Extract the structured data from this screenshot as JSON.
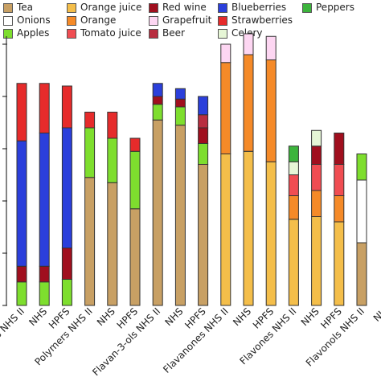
{
  "chart_data": {
    "type": "bar",
    "stacked": true,
    "title": "",
    "xlabel": "",
    "ylabel": "",
    "ylim": [
      0,
      50
    ],
    "y_ticks": [
      "0",
      "10",
      "20",
      "30",
      "40",
      "50"
    ],
    "grid": false,
    "legend_position": "top",
    "legend": [
      {
        "name": "Tea",
        "color": "#c8a064"
      },
      {
        "name": "Orange juice",
        "color": "#f4be4a"
      },
      {
        "name": "Red wine",
        "color": "#a00f1e"
      },
      {
        "name": "Blueberries",
        "color": "#2b3fdb"
      },
      {
        "name": "Peppers",
        "color": "#3cb43c"
      },
      {
        "name": "Onions",
        "color": "#ffffff"
      },
      {
        "name": "Orange",
        "color": "#f58a28"
      },
      {
        "name": "Grapefruit",
        "color": "#fdd6f2"
      },
      {
        "name": "Strawberries",
        "color": "#e62b2b"
      },
      {
        "name": "Apples",
        "color": "#7ede2e"
      },
      {
        "name": "Tomato juice",
        "color": "#f04d52"
      },
      {
        "name": "Beer",
        "color": "#b82e40"
      },
      {
        "name": "Celery",
        "color": "#e6f6d6"
      }
    ],
    "categories": [
      "Flavonoids NHS II",
      "NHS",
      "HPFS",
      "Polymers NHS II",
      "NHS",
      "HPFS",
      "Flavan-3-ols NHS II",
      "NHS",
      "HPFS",
      "Flavanones NHS II",
      "NHS",
      "HPFS",
      "Flavones NHS II",
      "NHS",
      "HPFS",
      "Flavonols NHS II",
      "NHS"
    ],
    "x_tick_labels": [
      "Flavonoids NHS II",
      "NHS",
      "HPFS",
      "Polymers NHS II",
      "NHS",
      "HPFS",
      "Flavan-3-ols NHS II",
      "NHS",
      "HPFS",
      "Flavanones NHS II",
      "NHS",
      "HPFS",
      "Flavones NHS II",
      "NHS",
      "HPFS",
      "Flavonols NHS II",
      "NH"
    ],
    "bars": [
      {
        "segments": [
          {
            "name": "Apples",
            "value": 4.5
          },
          {
            "name": "Red wine",
            "value": 3
          },
          {
            "name": "Blueberries",
            "value": 24
          },
          {
            "name": "Strawberries",
            "value": 11
          }
        ]
      },
      {
        "segments": [
          {
            "name": "Apples",
            "value": 4.5
          },
          {
            "name": "Red wine",
            "value": 3
          },
          {
            "name": "Blueberries",
            "value": 25.5
          },
          {
            "name": "Strawberries",
            "value": 9.5
          }
        ]
      },
      {
        "segments": [
          {
            "name": "Apples",
            "value": 5
          },
          {
            "name": "Red wine",
            "value": 6
          },
          {
            "name": "Blueberries",
            "value": 23
          },
          {
            "name": "Strawberries",
            "value": 8
          }
        ]
      },
      {
        "segments": [
          {
            "name": "Tea",
            "value": 24.5
          },
          {
            "name": "Apples",
            "value": 9.5
          },
          {
            "name": "Strawberries",
            "value": 3
          }
        ]
      },
      {
        "segments": [
          {
            "name": "Tea",
            "value": 23.5
          },
          {
            "name": "Apples",
            "value": 8.5
          },
          {
            "name": "Strawberries",
            "value": 5
          }
        ]
      },
      {
        "segments": [
          {
            "name": "Tea",
            "value": 18.5
          },
          {
            "name": "Apples",
            "value": 11
          },
          {
            "name": "Strawberries",
            "value": 2.5
          }
        ]
      },
      {
        "segments": [
          {
            "name": "Tea",
            "value": 35.5
          },
          {
            "name": "Apples",
            "value": 3
          },
          {
            "name": "Red wine",
            "value": 1.5
          },
          {
            "name": "Blueberries",
            "value": 2.5
          }
        ]
      },
      {
        "segments": [
          {
            "name": "Tea",
            "value": 34.5
          },
          {
            "name": "Apples",
            "value": 3.5
          },
          {
            "name": "Red wine",
            "value": 1.5
          },
          {
            "name": "Blueberries",
            "value": 2
          }
        ]
      },
      {
        "segments": [
          {
            "name": "Tea",
            "value": 27
          },
          {
            "name": "Apples",
            "value": 4
          },
          {
            "name": "Red wine",
            "value": 3
          },
          {
            "name": "Beer",
            "value": 2.5
          },
          {
            "name": "Blueberries",
            "value": 3.5
          }
        ]
      },
      {
        "segments": [
          {
            "name": "Orange juice",
            "value": 29
          },
          {
            "name": "Orange",
            "value": 17.5
          },
          {
            "name": "Grapefruit",
            "value": 3.5
          }
        ]
      },
      {
        "segments": [
          {
            "name": "Orange juice",
            "value": 29.5
          },
          {
            "name": "Orange",
            "value": 18.5
          },
          {
            "name": "Grapefruit",
            "value": 4
          }
        ]
      },
      {
        "segments": [
          {
            "name": "Orange juice",
            "value": 27.5
          },
          {
            "name": "Orange",
            "value": 19.5
          },
          {
            "name": "Grapefruit",
            "value": 4.5
          }
        ]
      },
      {
        "segments": [
          {
            "name": "Orange juice",
            "value": 16.5
          },
          {
            "name": "Orange",
            "value": 4.5
          },
          {
            "name": "Tomato juice",
            "value": 4
          },
          {
            "name": "Celery",
            "value": 2.5
          },
          {
            "name": "Peppers",
            "value": 3
          }
        ]
      },
      {
        "segments": [
          {
            "name": "Orange juice",
            "value": 17
          },
          {
            "name": "Orange",
            "value": 5
          },
          {
            "name": "Tomato juice",
            "value": 5
          },
          {
            "name": "Red wine",
            "value": 3.5
          },
          {
            "name": "Celery",
            "value": 3
          }
        ]
      },
      {
        "segments": [
          {
            "name": "Orange juice",
            "value": 16
          },
          {
            "name": "Orange",
            "value": 5
          },
          {
            "name": "Tomato juice",
            "value": 6
          },
          {
            "name": "Red wine",
            "value": 6
          }
        ]
      },
      {
        "segments": [
          {
            "name": "Tea",
            "value": 12
          },
          {
            "name": "Onions",
            "value": 12
          },
          {
            "name": "Apples",
            "value": 5
          }
        ]
      },
      {
        "segments": []
      }
    ]
  }
}
